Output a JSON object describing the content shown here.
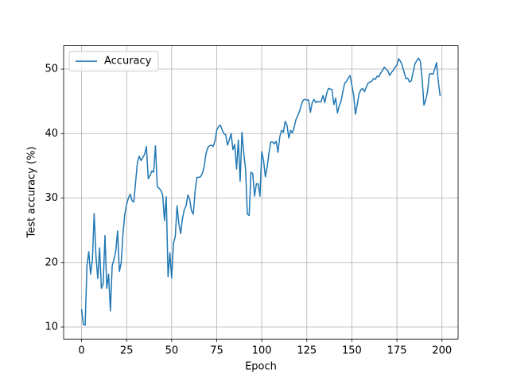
{
  "chart_data": {
    "type": "line",
    "xlabel": "Epoch",
    "ylabel": "Test accuracy (%)",
    "x": [
      0,
      1,
      2,
      3,
      4,
      5,
      6,
      7,
      8,
      9,
      10,
      11,
      12,
      13,
      14,
      15,
      16,
      17,
      18,
      19,
      20,
      21,
      22,
      23,
      24,
      25,
      26,
      27,
      28,
      29,
      30,
      31,
      32,
      33,
      34,
      35,
      36,
      37,
      38,
      39,
      40,
      41,
      42,
      43,
      44,
      45,
      46,
      47,
      48,
      49,
      50,
      51,
      52,
      53,
      54,
      55,
      56,
      57,
      58,
      59,
      60,
      61,
      62,
      63,
      64,
      65,
      66,
      67,
      68,
      69,
      70,
      71,
      72,
      73,
      74,
      75,
      76,
      77,
      78,
      79,
      80,
      81,
      82,
      83,
      84,
      85,
      86,
      87,
      88,
      89,
      90,
      91,
      92,
      93,
      94,
      95,
      96,
      97,
      98,
      99,
      100,
      101,
      102,
      103,
      104,
      105,
      106,
      107,
      108,
      109,
      110,
      111,
      112,
      113,
      114,
      115,
      116,
      117,
      118,
      119,
      120,
      121,
      122,
      123,
      124,
      125,
      126,
      127,
      128,
      129,
      130,
      131,
      132,
      133,
      134,
      135,
      136,
      137,
      138,
      139,
      140,
      141,
      142,
      143,
      144,
      145,
      146,
      147,
      148,
      149,
      150,
      151,
      152,
      153,
      154,
      155,
      156,
      157,
      158,
      159,
      160,
      161,
      162,
      163,
      164,
      165,
      166,
      167,
      168,
      169,
      170,
      171,
      172,
      173,
      174,
      175,
      176,
      177,
      178,
      179,
      180,
      181,
      182,
      183,
      184,
      185,
      186,
      187,
      188,
      189,
      190,
      191,
      192,
      193,
      194,
      195,
      196,
      197,
      198,
      199
    ],
    "series": [
      {
        "name": "Accuracy",
        "color": "#1f77b4",
        "values": [
          12.8,
          10.4,
          10.3,
          19.5,
          21.7,
          18.2,
          20.3,
          27.6,
          21.0,
          17.5,
          22.3,
          16.0,
          16.7,
          24.2,
          16.0,
          18.2,
          12.5,
          19.5,
          20.5,
          21.8,
          24.9,
          18.6,
          20.0,
          24.5,
          27.5,
          29.0,
          30.0,
          30.6,
          29.6,
          29.4,
          32.5,
          35.5,
          36.5,
          35.8,
          36.3,
          36.8,
          38.0,
          33.0,
          33.5,
          34.2,
          34.0,
          38.1,
          31.8,
          31.5,
          31.2,
          30.5,
          26.5,
          30.2,
          17.8,
          21.5,
          17.6,
          23.0,
          24.0,
          28.8,
          26.0,
          24.5,
          26.8,
          28.2,
          28.8,
          30.5,
          29.8,
          28.0,
          27.5,
          31.0,
          33.2,
          33.2,
          33.3,
          33.8,
          34.8,
          36.8,
          37.8,
          38.1,
          38.2,
          38.0,
          38.8,
          40.5,
          41.1,
          41.3,
          40.6,
          40.0,
          39.8,
          38.2,
          39.0,
          40.0,
          37.5,
          38.3,
          34.5,
          39.0,
          32.6,
          40.2,
          37.0,
          34.5,
          27.5,
          27.3,
          34.0,
          33.8,
          30.3,
          32.2,
          32.2,
          30.3,
          37.2,
          35.8,
          33.3,
          34.8,
          37.0,
          38.7,
          38.7,
          38.4,
          38.8,
          37.1,
          39.5,
          40.5,
          40.2,
          41.9,
          41.3,
          39.3,
          40.5,
          40.1,
          41.0,
          42.2,
          42.8,
          43.5,
          44.5,
          45.2,
          45.3,
          45.2,
          45.2,
          43.3,
          44.8,
          45.3,
          44.8,
          45.0,
          44.9,
          45.0,
          45.9,
          44.8,
          46.2,
          47.0,
          46.9,
          46.8,
          44.5,
          45.5,
          43.2,
          44.3,
          45.0,
          46.5,
          47.8,
          48.1,
          48.6,
          49.0,
          47.5,
          45.9,
          43.0,
          44.5,
          46.2,
          46.8,
          47.0,
          46.5,
          47.2,
          47.8,
          48.0,
          48.1,
          48.5,
          48.4,
          48.9,
          48.8,
          49.4,
          49.8,
          50.3,
          50.0,
          49.7,
          49.0,
          49.5,
          49.8,
          50.3,
          50.6,
          51.6,
          51.2,
          50.5,
          49.5,
          48.5,
          48.6,
          48.0,
          48.2,
          49.5,
          50.8,
          51.3,
          51.7,
          51.2,
          48.5,
          44.4,
          45.2,
          46.5,
          49.2,
          49.3,
          49.2,
          50.0,
          51.0,
          48.0,
          45.8
        ]
      }
    ],
    "xlim": [
      -9.95,
      208.95
    ],
    "xticks": [
      0,
      25,
      50,
      75,
      100,
      125,
      150,
      175,
      200
    ],
    "ylim": [
      8.13,
      53.62
    ],
    "yticks": [
      10,
      20,
      30,
      40,
      50
    ],
    "grid": true,
    "legend": "upper left"
  }
}
